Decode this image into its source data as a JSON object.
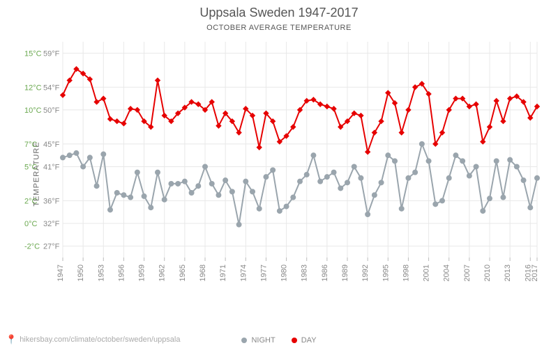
{
  "title": "Uppsala Sweden 1947-2017",
  "subtitle": "OCTOBER AVERAGE TEMPERATURE",
  "ylabel": "TEMPERATURE",
  "footer_url": "hikersbay.com/climate/october/sweden/uppsala",
  "chart": {
    "type": "line",
    "background_color": "#ffffff",
    "grid_color": "#e8e8e8",
    "title_fontsize": 18,
    "title_color": "#555555",
    "subtitle_fontsize": 11,
    "label_fontsize": 11,
    "axis_text_color": "#888888",
    "celsius_label_color": "#6aa84f",
    "line_width": 2,
    "marker_size": 3.5,
    "x_start": 1947,
    "x_end": 2017,
    "x_tick_step": 3,
    "y_min_c": -3,
    "y_max_c": 16,
    "y_ticks": [
      {
        "c": "-2°C",
        "f": "27°F",
        "val": -2
      },
      {
        "c": "0°C",
        "f": "32°F",
        "val": 0
      },
      {
        "c": "2°C",
        "f": "36°F",
        "val": 2
      },
      {
        "c": "5°C",
        "f": "41°F",
        "val": 5
      },
      {
        "c": "7°C",
        "f": "45°F",
        "val": 7
      },
      {
        "c": "10°C",
        "f": "50°F",
        "val": 10
      },
      {
        "c": "12°C",
        "f": "54°F",
        "val": 12
      },
      {
        "c": "15°C",
        "f": "59°F",
        "val": 15
      }
    ],
    "series": [
      {
        "name": "DAY",
        "color": "#e60000",
        "marker": "diamond",
        "years": [
          1947,
          1948,
          1949,
          1950,
          1951,
          1952,
          1953,
          1954,
          1955,
          1956,
          1957,
          1958,
          1959,
          1960,
          1961,
          1962,
          1963,
          1964,
          1965,
          1966,
          1967,
          1968,
          1969,
          1970,
          1971,
          1972,
          1973,
          1974,
          1975,
          1976,
          1977,
          1978,
          1979,
          1980,
          1981,
          1982,
          1983,
          1984,
          1985,
          1986,
          1987,
          1988,
          1989,
          1990,
          1991,
          1992,
          1993,
          1994,
          1995,
          1996,
          1997,
          1998,
          1999,
          2000,
          2001,
          2002,
          2003,
          2004,
          2005,
          2006,
          2007,
          2008,
          2009,
          2010,
          2011,
          2012,
          2013,
          2014,
          2015,
          2016,
          2017
        ],
        "values": [
          11.3,
          12.6,
          13.6,
          13.2,
          12.7,
          10.7,
          11.0,
          9.2,
          9.0,
          8.8,
          10.1,
          10.0,
          9.0,
          8.5,
          12.6,
          9.5,
          9.0,
          9.7,
          10.2,
          10.7,
          10.5,
          10.0,
          10.7,
          8.6,
          9.7,
          9.0,
          8.0,
          10.1,
          9.5,
          6.7,
          9.7,
          9.0,
          7.2,
          7.7,
          8.5,
          10.0,
          10.8,
          10.9,
          10.5,
          10.3,
          10.1,
          8.5,
          9.0,
          9.7,
          9.5,
          6.3,
          8.0,
          9.0,
          11.5,
          10.6,
          8.0,
          10.0,
          12.0,
          12.3,
          11.4,
          7.0,
          8.0,
          10.0,
          11.0,
          11.0,
          10.3,
          10.5,
          7.2,
          8.5,
          10.8,
          9.0,
          11.0,
          11.2,
          10.7,
          9.3,
          10.3
        ]
      },
      {
        "name": "NIGHT",
        "color": "#9aa5ad",
        "marker": "circle",
        "years": [
          1947,
          1948,
          1949,
          1950,
          1951,
          1952,
          1953,
          1954,
          1955,
          1956,
          1957,
          1958,
          1959,
          1960,
          1961,
          1962,
          1963,
          1964,
          1965,
          1966,
          1967,
          1968,
          1969,
          1970,
          1971,
          1972,
          1973,
          1974,
          1975,
          1976,
          1977,
          1978,
          1979,
          1980,
          1981,
          1982,
          1983,
          1984,
          1985,
          1986,
          1987,
          1988,
          1989,
          1990,
          1991,
          1992,
          1993,
          1994,
          1995,
          1996,
          1997,
          1998,
          1999,
          2000,
          2001,
          2002,
          2003,
          2004,
          2005,
          2006,
          2007,
          2008,
          2009,
          2010,
          2011,
          2012,
          2013,
          2014,
          2015,
          2016,
          2017
        ],
        "values": [
          5.8,
          6.0,
          6.2,
          5.0,
          5.8,
          3.3,
          6.1,
          1.2,
          2.7,
          2.5,
          2.3,
          4.5,
          2.4,
          1.4,
          4.5,
          2.1,
          3.5,
          3.5,
          3.7,
          2.7,
          3.3,
          5.0,
          3.5,
          2.5,
          3.8,
          2.8,
          -0.1,
          3.7,
          2.8,
          1.3,
          4.1,
          4.7,
          1.1,
          1.5,
          2.3,
          3.7,
          4.3,
          6.0,
          3.7,
          4.1,
          4.5,
          3.1,
          3.6,
          5.0,
          4.0,
          0.8,
          2.5,
          3.6,
          6.0,
          5.5,
          1.3,
          4.0,
          4.5,
          7.0,
          5.5,
          1.7,
          2.0,
          4.0,
          6.0,
          5.5,
          4.2,
          5.0,
          1.1,
          2.2,
          5.5,
          2.3,
          5.6,
          5.0,
          3.8,
          1.4,
          4.0
        ]
      }
    ],
    "legend": {
      "items": [
        {
          "label": "NIGHT",
          "color": "#9aa5ad"
        },
        {
          "label": "DAY",
          "color": "#e60000"
        }
      ]
    }
  }
}
